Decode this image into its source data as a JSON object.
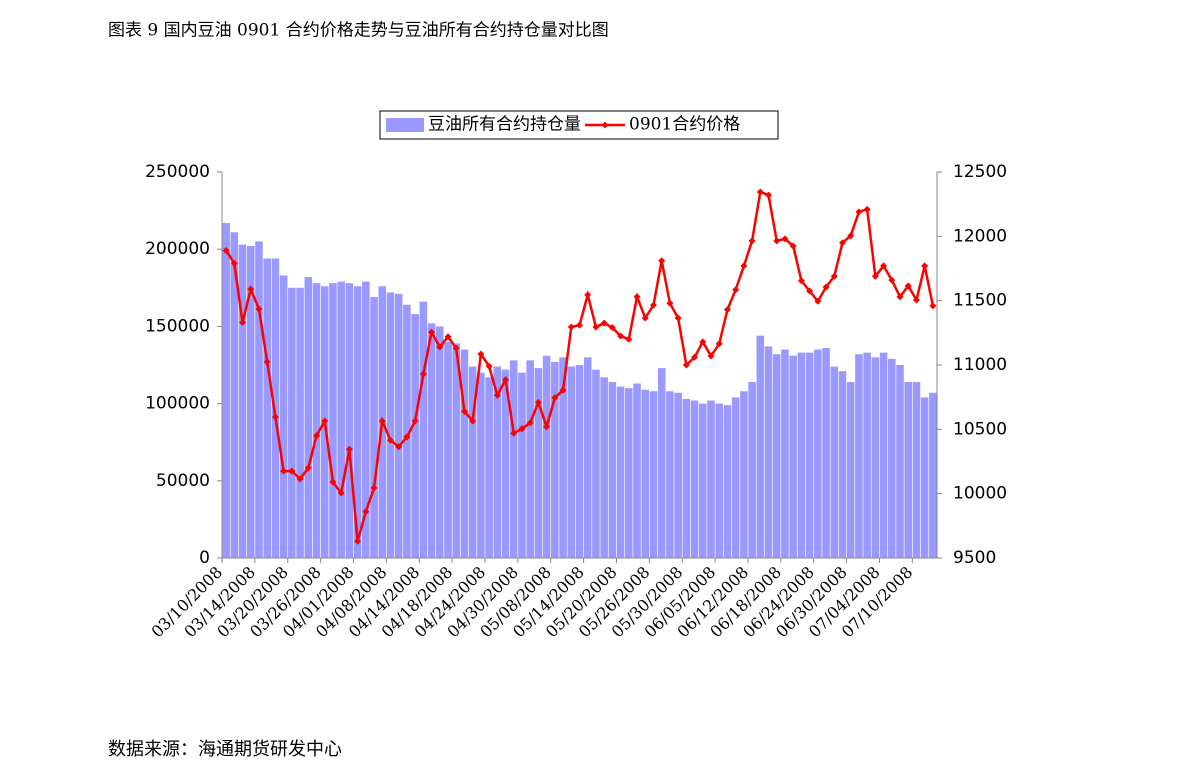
{
  "title": "图表 9 国内豆油 0901 合约价格走势与豆油所有合约持仓量对比图",
  "source": "数据来源：海通期货研发中心",
  "chart_data": {
    "type": "bar",
    "categories": [
      "03/10/2008",
      null,
      null,
      null,
      "03/14/2008",
      null,
      null,
      null,
      "03/20/2008",
      null,
      null,
      null,
      "03/26/2008",
      null,
      null,
      null,
      "04/01/2008",
      null,
      null,
      null,
      "04/08/2008",
      null,
      null,
      null,
      "04/14/2008",
      null,
      null,
      null,
      "04/18/2008",
      null,
      null,
      null,
      "04/24/2008",
      null,
      null,
      null,
      "04/30/2008",
      null,
      null,
      null,
      "05/08/2008",
      null,
      null,
      null,
      "05/14/2008",
      null,
      null,
      null,
      "05/20/2008",
      null,
      null,
      null,
      "05/26/2008",
      null,
      null,
      null,
      "05/30/2008",
      null,
      null,
      null,
      "06/05/2008",
      null,
      null,
      null,
      "06/12/2008",
      null,
      null,
      null,
      "06/18/2008",
      null,
      null,
      null,
      "06/24/2008",
      null,
      null,
      null,
      "06/30/2008",
      null,
      null,
      null,
      "07/04/2008",
      null,
      null,
      null,
      "07/10/2008",
      null,
      null
    ],
    "series": [
      {
        "name": "豆油所有合约持仓量",
        "type": "bar",
        "color": "#9999ff",
        "values": [
          217000,
          211000,
          203000,
          202000,
          205000,
          194000,
          194000,
          183000,
          175000,
          175000,
          182000,
          178000,
          176000,
          178000,
          179000,
          178000,
          176000,
          179000,
          169000,
          176000,
          172000,
          171000,
          164000,
          158000,
          166000,
          152000,
          150000,
          140000,
          139000,
          135000,
          124000,
          120000,
          117000,
          124000,
          122000,
          128000,
          120000,
          128000,
          123000,
          131000,
          127000,
          130000,
          124000,
          125000,
          130000,
          122000,
          117000,
          114000,
          111000,
          110000,
          113000,
          109000,
          108000,
          123000,
          108000,
          107000,
          103000,
          102000,
          100000,
          102000,
          100000,
          99000,
          104000,
          108000,
          114000,
          144000,
          137000,
          132000,
          135000,
          131000,
          133000,
          133000,
          135000,
          136000,
          124000,
          121000,
          114000,
          132000,
          133000,
          130000,
          133000,
          129000,
          125000,
          114000,
          114000,
          104000,
          107000
        ]
      },
      {
        "name": "0901合约价格",
        "type": "line",
        "axis": "y2",
        "color": "#ff0000",
        "values": [
          11890,
          11790,
          11330,
          11590,
          11435,
          11025,
          10595,
          10175,
          10175,
          10115,
          10200,
          10450,
          10565,
          10090,
          10005,
          10345,
          9630,
          9860,
          10045,
          10565,
          10415,
          10365,
          10440,
          10565,
          10930,
          11255,
          11140,
          11220,
          11130,
          10640,
          10565,
          11085,
          10990,
          10765,
          10885,
          10470,
          10505,
          10550,
          10710,
          10520,
          10745,
          10805,
          11295,
          11310,
          11545,
          11295,
          11325,
          11290,
          11225,
          11200,
          11530,
          11365,
          11465,
          11810,
          11480,
          11365,
          11000,
          11060,
          11180,
          11070,
          11165,
          11430,
          11585,
          11770,
          11965,
          12345,
          12320,
          11965,
          11980,
          11925,
          11655,
          11575,
          11495,
          11605,
          11690,
          11950,
          12005,
          12190,
          12210,
          11690,
          11770,
          11660,
          11530,
          11615,
          11505,
          11770,
          11460
        ]
      }
    ],
    "ylim": [
      0,
      250000
    ],
    "yticks": [
      0,
      50000,
      100000,
      150000,
      200000,
      250000
    ],
    "y2lim": [
      9500,
      12500
    ],
    "y2ticks": [
      9500,
      10000,
      10500,
      11000,
      11500,
      12000,
      12500
    ],
    "legend": "top"
  }
}
